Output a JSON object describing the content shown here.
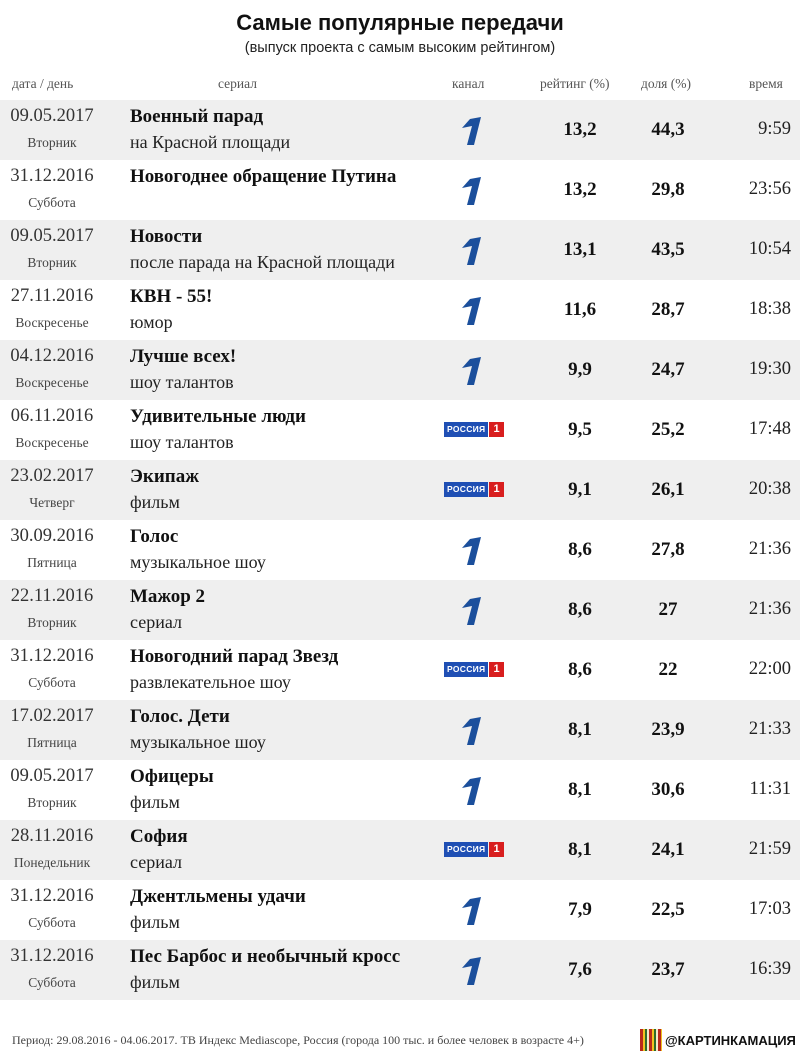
{
  "title": "Самые популярные передачи",
  "subtitle": "(выпуск проекта с самым высоким рейтингом)",
  "columns": {
    "date": "дата / день",
    "series": "сериал",
    "channel": "канал",
    "rating": "рейтинг (%)",
    "share": "доля (%)",
    "time": "время"
  },
  "channels": {
    "ros_a": "РОССИЯ",
    "ros_b": "1"
  },
  "rows": [
    {
      "date": "09.05.2017",
      "weekday": "Вторник",
      "title": "Военный парад",
      "subtitle": "на Красной площади",
      "channel": "perviy",
      "rating": "13,2",
      "share": "44,3",
      "time": "9:59"
    },
    {
      "date": "31.12.2016",
      "weekday": "Суббота",
      "title": "Новогоднее обращение Путина",
      "subtitle": "",
      "channel": "perviy",
      "rating": "13,2",
      "share": "29,8",
      "time": "23:56"
    },
    {
      "date": "09.05.2017",
      "weekday": "Вторник",
      "title": "Новости",
      "subtitle": "после парада на Красной площади",
      "channel": "perviy",
      "rating": "13,1",
      "share": "43,5",
      "time": "10:54"
    },
    {
      "date": "27.11.2016",
      "weekday": "Воскресенье",
      "title": "КВН - 55!",
      "subtitle": "юмор",
      "channel": "perviy",
      "rating": "11,6",
      "share": "28,7",
      "time": "18:38"
    },
    {
      "date": "04.12.2016",
      "weekday": "Воскресенье",
      "title": "Лучше всех!",
      "subtitle": "шоу талантов",
      "channel": "perviy",
      "rating": "9,9",
      "share": "24,7",
      "time": "19:30"
    },
    {
      "date": "06.11.2016",
      "weekday": "Воскресенье",
      "title": "Удивительные люди",
      "subtitle": "шоу талантов",
      "channel": "rossiya1",
      "rating": "9,5",
      "share": "25,2",
      "time": "17:48"
    },
    {
      "date": "23.02.2017",
      "weekday": "Четверг",
      "title": "Экипаж",
      "subtitle": "фильм",
      "channel": "rossiya1",
      "rating": "9,1",
      "share": "26,1",
      "time": "20:38"
    },
    {
      "date": "30.09.2016",
      "weekday": "Пятница",
      "title": "Голос",
      "subtitle": "музыкальное шоу",
      "channel": "perviy",
      "rating": "8,6",
      "share": "27,8",
      "time": "21:36"
    },
    {
      "date": "22.11.2016",
      "weekday": "Вторник",
      "title": "Мажор 2",
      "subtitle": "сериал",
      "channel": "perviy",
      "rating": "8,6",
      "share": "27",
      "time": "21:36"
    },
    {
      "date": "31.12.2016",
      "weekday": "Суббота",
      "title": "Новогодний парад Звезд",
      "subtitle": "развлекательное шоу",
      "channel": "rossiya1",
      "rating": "8,6",
      "share": "22",
      "time": "22:00"
    },
    {
      "date": "17.02.2017",
      "weekday": "Пятница",
      "title": "Голос. Дети",
      "subtitle": "музыкальное шоу",
      "channel": "perviy",
      "rating": "8,1",
      "share": "23,9",
      "time": "21:33"
    },
    {
      "date": "09.05.2017",
      "weekday": "Вторник",
      "title": "Офицеры",
      "subtitle": "фильм",
      "channel": "perviy",
      "rating": "8,1",
      "share": "30,6",
      "time": "11:31"
    },
    {
      "date": "28.11.2016",
      "weekday": "Понедельник",
      "title": "София",
      "subtitle": "сериал",
      "channel": "rossiya1",
      "rating": "8,1",
      "share": "24,1",
      "time": "21:59"
    },
    {
      "date": "31.12.2016",
      "weekday": "Суббота",
      "title": "Джентльмены удачи",
      "subtitle": "фильм",
      "channel": "perviy",
      "rating": "7,9",
      "share": "22,5",
      "time": "17:03"
    },
    {
      "date": "31.12.2016",
      "weekday": "Суббота",
      "title": "Пес Барбос и необычный кросс",
      "subtitle": "фильм",
      "channel": "perviy",
      "rating": "7,6",
      "share": "23,7",
      "time": "16:39"
    }
  ],
  "footer": "Период: 29.08.2016 - 04.06.2017. ТВ Индекс Mediascope, Россия (города 100 тыс. и более человек в возрасте 4+)",
  "brand": "@КАРТИНКАМАЦИЯ",
  "colors": {
    "perviy_blue": "#1b4f9c",
    "rossiya_blue": "#1f4fb4",
    "rossiya_red": "#d81e1e",
    "row_stripe": "#efefef"
  }
}
